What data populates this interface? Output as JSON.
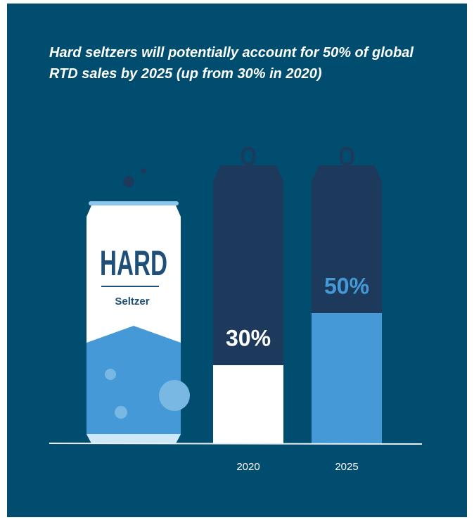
{
  "chart_data": {
    "type": "bar",
    "title": "Hard seltzers will potentially account for 50% of global RTD sales by 2025 (up from 30% in 2020)",
    "categories": [
      "2020",
      "2025"
    ],
    "values": [
      30,
      50
    ],
    "value_labels": [
      "30%",
      "50%"
    ],
    "colors": [
      "#ffffff",
      "#4499d6"
    ],
    "label_colors": [
      "#ffffff",
      "#4499d6"
    ],
    "ylim": [
      0,
      100
    ]
  },
  "illustration": {
    "label": "HARD",
    "sublabel": "Seltzer"
  }
}
